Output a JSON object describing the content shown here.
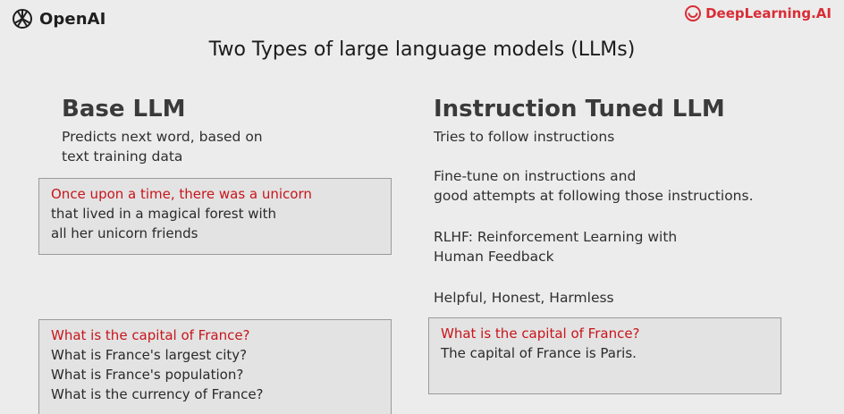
{
  "header": {
    "openai_logo_text": "OpenAI",
    "deeplearning_logo_text": "DeepLearning.AI",
    "title": "Two Types of large language models (LLMs)"
  },
  "base_llm": {
    "heading": "Base LLM",
    "description_lines": [
      "Predicts next word, based on",
      "text training data"
    ],
    "example1": {
      "prompt": "Once upon a time, there was a unicorn",
      "completion_lines": [
        "that lived in a magical forest with",
        "all her unicorn friends"
      ]
    },
    "example2": {
      "prompt": "What is the capital of France?",
      "completion_lines": [
        "What is France's largest city?",
        "What is France's population?",
        "What is the currency of France?"
      ]
    }
  },
  "instruction_llm": {
    "heading": "Instruction Tuned LLM",
    "point1": "Tries to follow instructions",
    "point2_lines": [
      "Fine-tune on instructions and",
      "good attempts at following those instructions."
    ],
    "point3_lines": [
      "RLHF: Reinforcement Learning with",
      "Human Feedback"
    ],
    "point4": "Helpful, Honest, Harmless",
    "example": {
      "prompt": "What is the capital of France?",
      "completion": "The capital of France is Paris."
    }
  },
  "colors": {
    "accent_red": "#c8151b",
    "brand_red": "#d92c35"
  }
}
